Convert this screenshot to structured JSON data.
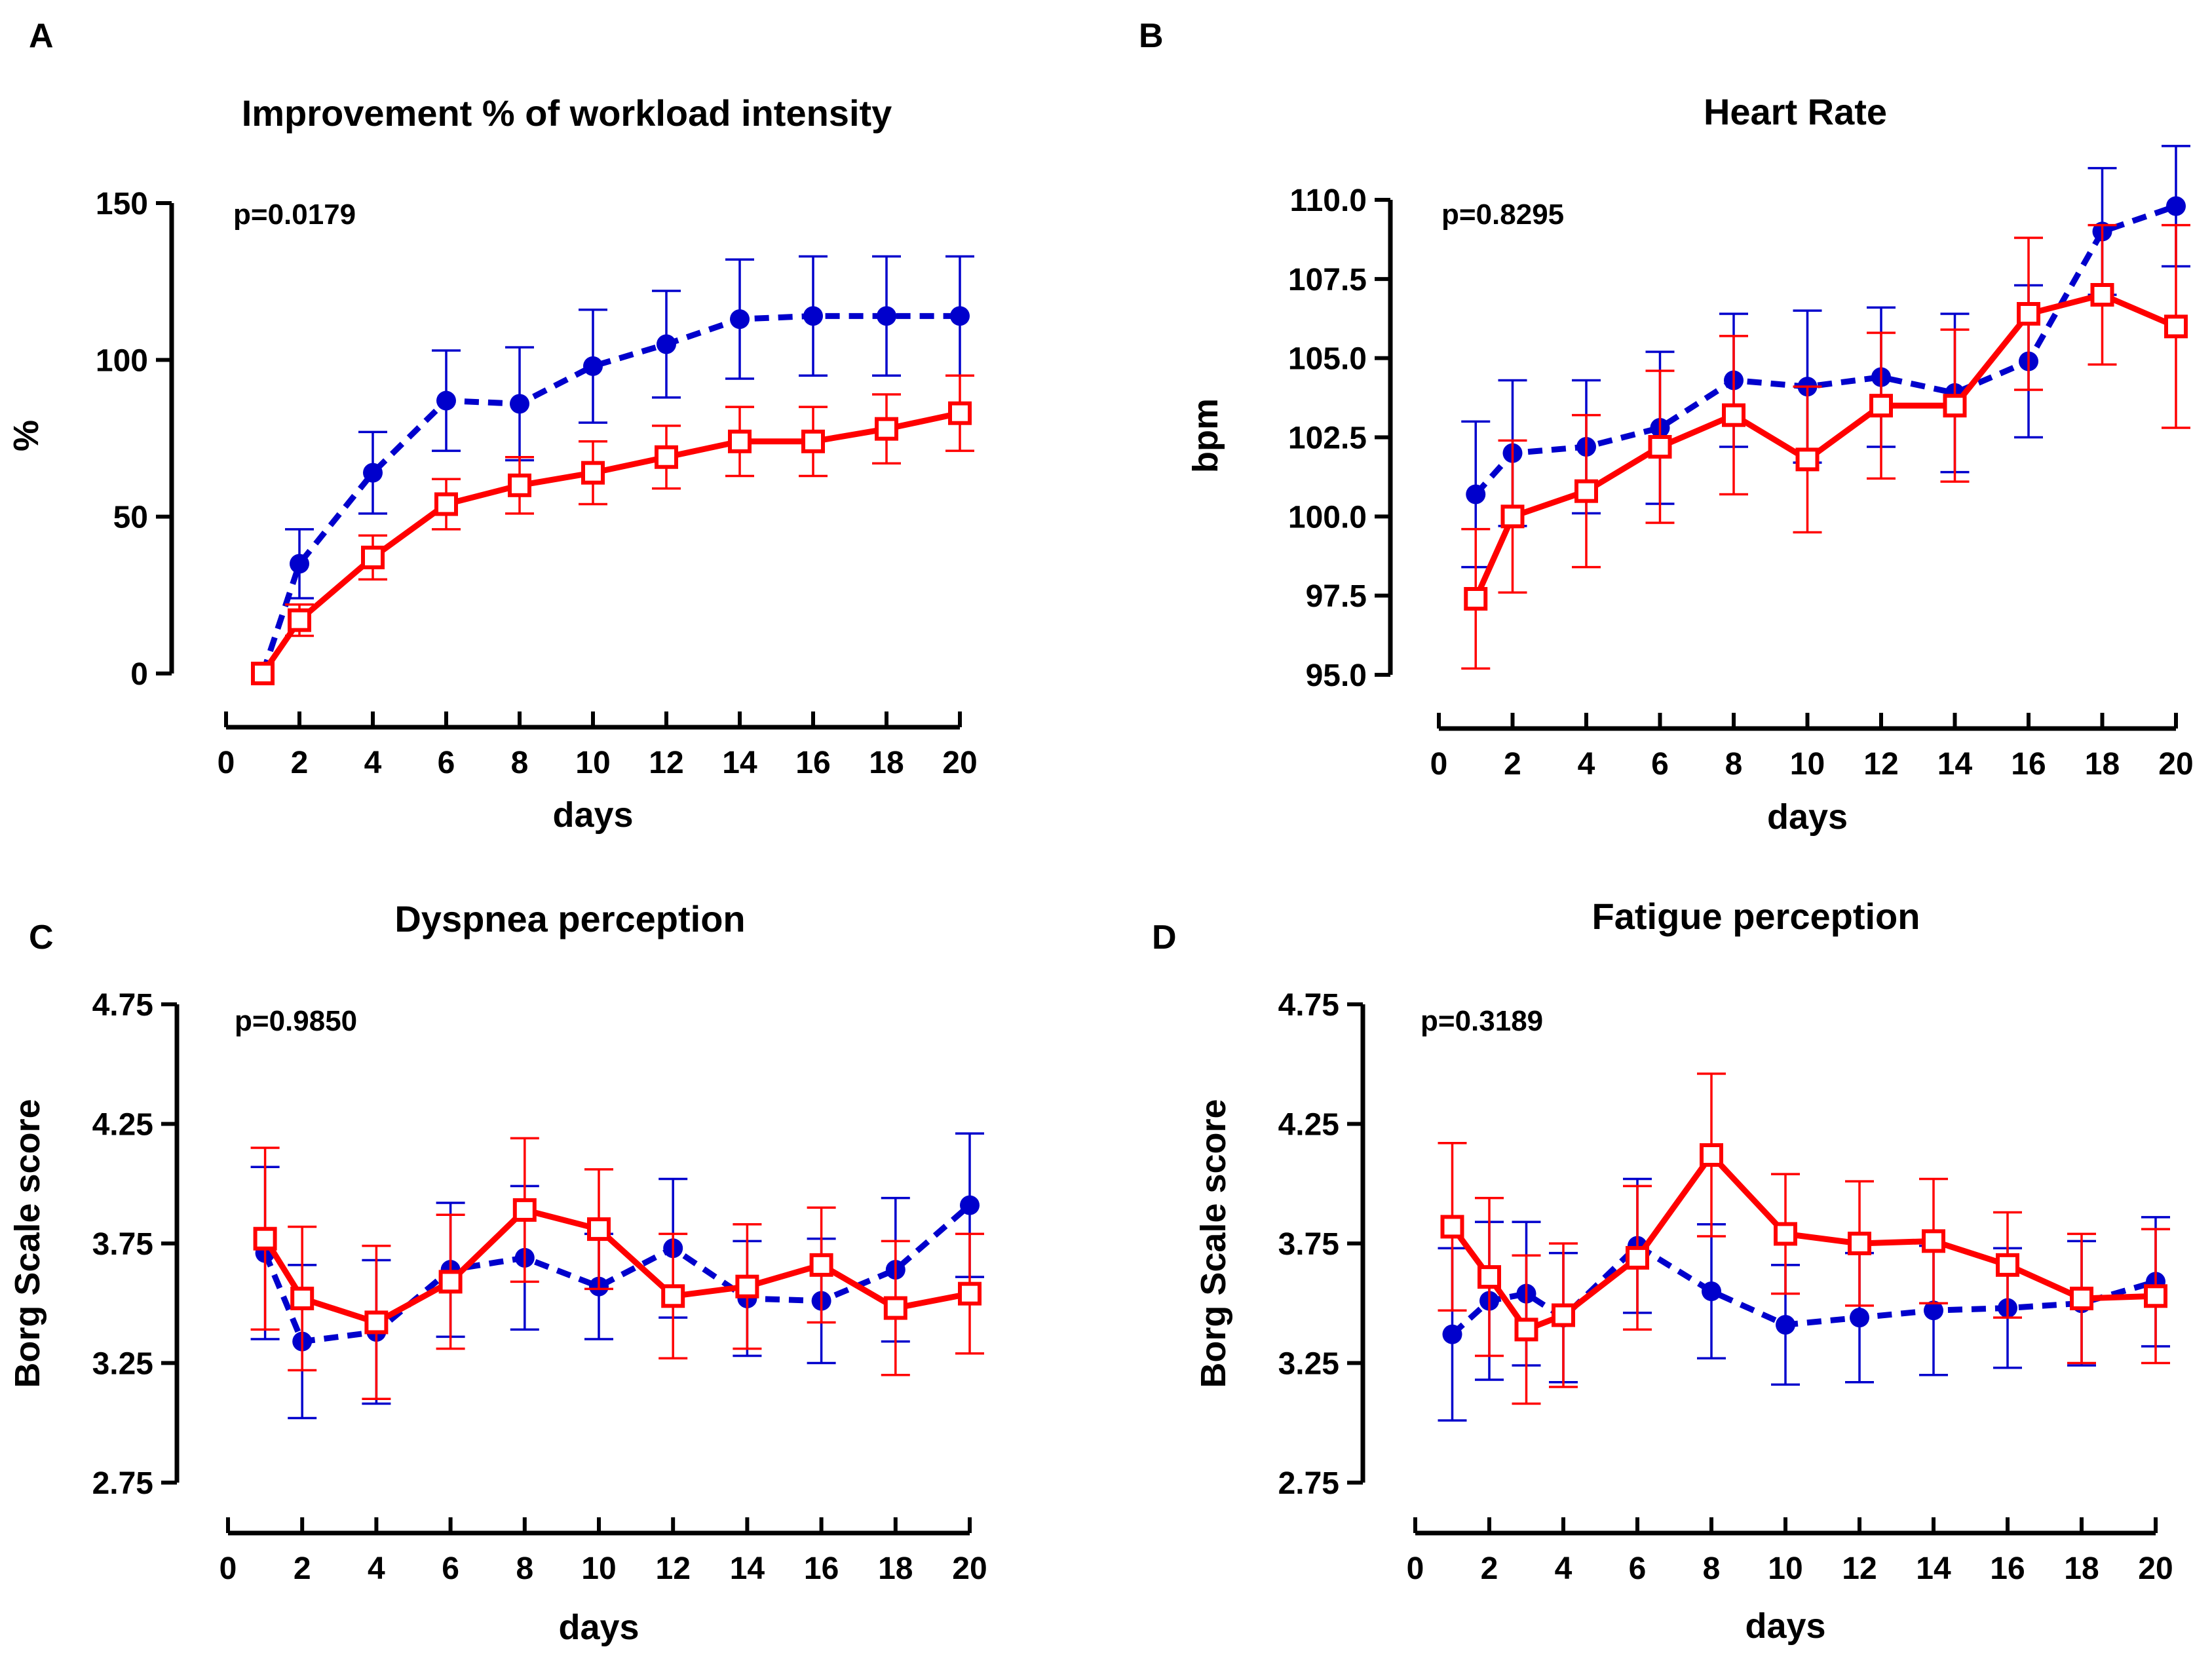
{
  "figure": {
    "colors": {
      "series_blue": "#0000cc",
      "series_red": "#ff0000",
      "axis": "#000000"
    },
    "series_styles": [
      {
        "name": "blue dashed, filled circle markers",
        "color": "#0000cc"
      },
      {
        "name": "red solid, open square markers",
        "color": "#ff0000"
      }
    ]
  },
  "chart_data": [
    {
      "panel": "A",
      "type": "line",
      "title": "Improvement % of workload intensity",
      "annotation": "p=0.0179",
      "xlabel": "days",
      "ylabel": "%",
      "xlim": [
        0,
        20
      ],
      "ylim": [
        0,
        150
      ],
      "xticks": [
        0,
        2,
        4,
        6,
        8,
        10,
        12,
        14,
        16,
        18,
        20
      ],
      "yticks": [
        0,
        50,
        100,
        150
      ],
      "ytick_labels": [
        "0",
        "50",
        "100",
        "150"
      ],
      "series": [
        {
          "name": "blue",
          "x": [
            1,
            2,
            4,
            6,
            8,
            10,
            12,
            14,
            16,
            18,
            20
          ],
          "y": [
            0,
            35,
            64,
            87,
            86,
            98,
            105,
            113,
            114,
            114,
            114
          ],
          "err": [
            0,
            11,
            13,
            16,
            18,
            18,
            17,
            19,
            19,
            19,
            19
          ]
        },
        {
          "name": "red",
          "x": [
            1,
            2,
            4,
            6,
            8,
            10,
            12,
            14,
            16,
            18,
            20
          ],
          "y": [
            0,
            17,
            37,
            54,
            60,
            64,
            69,
            74,
            74,
            78,
            83
          ],
          "err": [
            0,
            5,
            7,
            8,
            9,
            10,
            10,
            11,
            11,
            11,
            12
          ]
        }
      ]
    },
    {
      "panel": "B",
      "type": "line",
      "title": "Heart Rate",
      "annotation": "p=0.8295",
      "xlabel": "days",
      "ylabel": "bpm",
      "xlim": [
        0,
        20
      ],
      "ylim": [
        95,
        110
      ],
      "xticks": [
        0,
        2,
        4,
        6,
        8,
        10,
        12,
        14,
        16,
        18,
        20
      ],
      "yticks": [
        95,
        97.5,
        100,
        102.5,
        105,
        107.5,
        110
      ],
      "ytick_labels": [
        "95.0",
        "97.5",
        "100.0",
        "102.5",
        "105.0",
        "107.5",
        "110.0"
      ],
      "series": [
        {
          "name": "blue",
          "x": [
            1,
            2,
            4,
            6,
            8,
            10,
            12,
            14,
            16,
            18,
            20
          ],
          "y": [
            100.7,
            102.0,
            102.2,
            102.8,
            104.3,
            104.1,
            104.4,
            103.9,
            104.9,
            109.0,
            109.8
          ],
          "err": [
            2.3,
            2.3,
            2.1,
            2.4,
            2.1,
            2.4,
            2.2,
            2.5,
            2.4,
            2.0,
            1.9
          ]
        },
        {
          "name": "red",
          "x": [
            1,
            2,
            4,
            6,
            8,
            10,
            12,
            14,
            16,
            18,
            20
          ],
          "y": [
            97.4,
            100.0,
            100.8,
            102.2,
            103.2,
            101.8,
            103.5,
            103.5,
            106.4,
            107.0,
            106.0
          ],
          "err": [
            2.2,
            2.4,
            2.4,
            2.4,
            2.5,
            2.3,
            2.3,
            2.4,
            2.4,
            2.2,
            3.2
          ]
        }
      ]
    },
    {
      "panel": "C",
      "type": "line",
      "title": "Dyspnea perception",
      "annotation": "p=0.9850",
      "xlabel": "days",
      "ylabel": "Borg Scale score",
      "xlim": [
        0,
        20
      ],
      "ylim": [
        2.75,
        4.75
      ],
      "xticks": [
        0,
        2,
        4,
        6,
        8,
        10,
        12,
        14,
        16,
        18,
        20
      ],
      "yticks": [
        2.75,
        3.25,
        3.75,
        4.25,
        4.75
      ],
      "ytick_labels": [
        "2.75",
        "3.25",
        "3.75",
        "4.25",
        "4.75"
      ],
      "series": [
        {
          "name": "blue",
          "x": [
            1,
            2,
            4,
            6,
            8,
            10,
            12,
            14,
            16,
            18,
            20
          ],
          "y": [
            3.71,
            3.34,
            3.38,
            3.64,
            3.69,
            3.57,
            3.73,
            3.52,
            3.51,
            3.64,
            3.91
          ],
          "err": [
            0.36,
            0.32,
            0.3,
            0.28,
            0.3,
            0.22,
            0.29,
            0.24,
            0.26,
            0.3,
            0.3
          ]
        },
        {
          "name": "red",
          "x": [
            1,
            2,
            4,
            6,
            8,
            10,
            12,
            14,
            16,
            18,
            20
          ],
          "y": [
            3.77,
            3.52,
            3.42,
            3.59,
            3.89,
            3.81,
            3.53,
            3.57,
            3.66,
            3.48,
            3.54
          ],
          "err": [
            0.38,
            0.3,
            0.32,
            0.28,
            0.3,
            0.25,
            0.26,
            0.26,
            0.24,
            0.28,
            0.25
          ]
        }
      ]
    },
    {
      "panel": "D",
      "type": "line",
      "title": "Fatigue perception",
      "annotation": "p=0.3189",
      "xlabel": "days",
      "ylabel": "Borg Scale score",
      "xlim": [
        0,
        20
      ],
      "ylim": [
        2.75,
        4.75
      ],
      "xticks": [
        0,
        2,
        4,
        6,
        8,
        10,
        12,
        14,
        16,
        18,
        20
      ],
      "yticks": [
        2.75,
        3.25,
        3.75,
        4.25,
        4.75
      ],
      "ytick_labels": [
        "2.75",
        "3.25",
        "3.75",
        "4.25",
        "4.75"
      ],
      "series": [
        {
          "name": "blue",
          "x": [
            1,
            2,
            3,
            4,
            6,
            8,
            10,
            12,
            14,
            16,
            18,
            20
          ],
          "y": [
            3.37,
            3.51,
            3.54,
            3.44,
            3.74,
            3.55,
            3.41,
            3.44,
            3.47,
            3.48,
            3.5,
            3.59
          ],
          "err": [
            0.36,
            0.33,
            0.3,
            0.27,
            0.28,
            0.28,
            0.25,
            0.27,
            0.27,
            0.25,
            0.26,
            0.27
          ]
        },
        {
          "name": "red",
          "x": [
            1,
            2,
            3,
            4,
            6,
            8,
            10,
            12,
            14,
            16,
            18,
            20
          ],
          "y": [
            3.82,
            3.61,
            3.39,
            3.45,
            3.69,
            4.12,
            3.79,
            3.75,
            3.76,
            3.66,
            3.52,
            3.53
          ],
          "err": [
            0.35,
            0.33,
            0.31,
            0.3,
            0.3,
            0.34,
            0.25,
            0.26,
            0.26,
            0.22,
            0.27,
            0.28
          ]
        }
      ]
    }
  ]
}
